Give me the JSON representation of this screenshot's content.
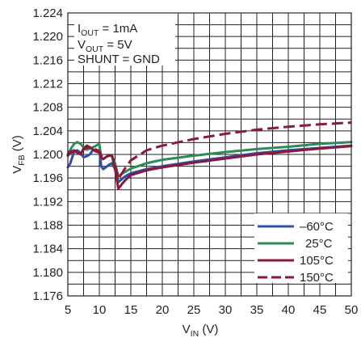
{
  "chart_data": {
    "type": "line",
    "title": "",
    "xlabel": {
      "main": "V",
      "sub": "IN",
      "unit": " (V)"
    },
    "ylabel": {
      "main": "V",
      "sub": "FB",
      "unit": " (V)"
    },
    "xlim": [
      5,
      50
    ],
    "ylim": [
      1.176,
      1.224
    ],
    "x_ticks": [
      "5",
      "10",
      "15",
      "20",
      "25",
      "30",
      "35",
      "40",
      "45",
      "50"
    ],
    "y_ticks": [
      "1.176",
      "1.180",
      "1.184",
      "1.188",
      "1.192",
      "1.196",
      "1.200",
      "1.204",
      "1.208",
      "1.212",
      "1.216",
      "1.220",
      "1.224"
    ],
    "x_grid_values": [
      5,
      7.5,
      10,
      12.5,
      15,
      17.5,
      20,
      22.5,
      25,
      27.5,
      30,
      32.5,
      35,
      37.5,
      40,
      42.5,
      45,
      47.5,
      50
    ],
    "y_grid_values": [
      1.176,
      1.178,
      1.18,
      1.182,
      1.184,
      1.186,
      1.188,
      1.19,
      1.192,
      1.194,
      1.196,
      1.198,
      1.2,
      1.202,
      1.204,
      1.206,
      1.208,
      1.21,
      1.212,
      1.214,
      1.216,
      1.218,
      1.22,
      1.222,
      1.224
    ],
    "grid": true,
    "legend_position": "bottom-right",
    "annotations": [
      {
        "main": "I",
        "sub": "OUT",
        "rest": " = 1mA"
      },
      {
        "main": "V",
        "sub": "OUT",
        "rest": " = 5V"
      },
      {
        "main": "SHUNT = GND",
        "sub": "",
        "rest": ""
      }
    ],
    "series": [
      {
        "name": "–60°C",
        "color": "#2e4fa3",
        "dashed": false,
        "x": [
          5,
          5.4,
          6,
          6.5,
          7,
          7.5,
          8,
          8.5,
          9,
          9.5,
          10,
          10.3,
          10.6,
          11,
          11.5,
          12,
          12.5,
          13,
          14,
          15,
          17.5,
          20,
          25,
          30,
          35,
          40,
          45,
          50
        ],
        "y": [
          1.1978,
          1.1985,
          1.2005,
          1.2007,
          1.2003,
          1.1995,
          1.1997,
          1.2,
          1.2008,
          1.2005,
          1.2008,
          1.198,
          1.1975,
          1.1978,
          1.1982,
          1.1985,
          1.1975,
          1.1953,
          1.1962,
          1.1968,
          1.1975,
          1.198,
          1.1988,
          1.1995,
          1.2002,
          1.2007,
          1.2011,
          1.2015
        ]
      },
      {
        "name": "25°C",
        "color": "#2e8b57",
        "dashed": false,
        "x": [
          5,
          5.5,
          6,
          6.5,
          7,
          7.5,
          8,
          8.5,
          9,
          9.5,
          10,
          10.3,
          10.6,
          11,
          11.5,
          12,
          12.5,
          13,
          14,
          15,
          17.5,
          20,
          25,
          30,
          35,
          40,
          45,
          50
        ],
        "y": [
          1.2,
          1.201,
          1.2018,
          1.2021,
          1.2018,
          1.2012,
          1.2008,
          1.201,
          1.2012,
          1.2015,
          1.2018,
          1.1995,
          1.1992,
          1.1995,
          1.1998,
          1.1998,
          1.1985,
          1.1963,
          1.197,
          1.1976,
          1.1985,
          1.1991,
          1.1998,
          1.2004,
          1.2009,
          1.2013,
          1.2018,
          1.2021
        ]
      },
      {
        "name": "105°C",
        "color": "#8b1a3a",
        "dashed": false,
        "x": [
          5,
          5.5,
          6,
          6.5,
          7,
          7.5,
          8,
          8.5,
          9,
          9.5,
          10,
          10.3,
          10.6,
          11,
          11.5,
          12,
          12.5,
          13,
          14,
          15,
          17.5,
          20,
          25,
          30,
          35,
          40,
          45,
          50
        ],
        "y": [
          1.1998,
          1.2003,
          1.2006,
          1.2003,
          1.2,
          1.201,
          1.2015,
          1.2012,
          1.2008,
          1.2005,
          1.2003,
          1.1995,
          1.1992,
          1.1995,
          1.1998,
          1.1998,
          1.1975,
          1.1942,
          1.1955,
          1.1965,
          1.1973,
          1.1978,
          1.1986,
          1.1993,
          1.2,
          1.2005,
          1.201,
          1.2014
        ]
      },
      {
        "name": "150°C",
        "color": "#8b1a3a",
        "dashed": true,
        "x": [
          5,
          5.5,
          6,
          6.5,
          7,
          7.5,
          8,
          8.5,
          9,
          9.5,
          10,
          10.3,
          10.6,
          11,
          11.5,
          12,
          12.5,
          13,
          14,
          15,
          17.5,
          20,
          25,
          30,
          35,
          40,
          45,
          50
        ],
        "y": [
          1.2002,
          1.2005,
          1.2007,
          1.2004,
          1.2,
          1.2008,
          1.2012,
          1.2012,
          1.201,
          1.2008,
          1.2005,
          1.1998,
          1.1995,
          1.1997,
          1.1999,
          1.1997,
          1.1982,
          1.1958,
          1.1975,
          1.199,
          1.2007,
          1.2015,
          1.2026,
          1.2035,
          1.2042,
          1.2047,
          1.2051,
          1.2054
        ]
      }
    ]
  }
}
